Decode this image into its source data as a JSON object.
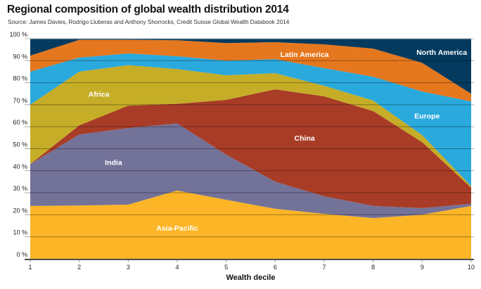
{
  "chart_data": {
    "type": "area",
    "stacked": true,
    "normalized": true,
    "title": "Regional composition of global wealth distribution 2014",
    "subtitle": "Source: James Davies, Rodrigo Lluberas and Anthony Shorrocks, Credit Suisse Global Wealth Databook 2014",
    "xlabel": "Wealth decile",
    "ylabel": "",
    "x": [
      1,
      2,
      3,
      4,
      5,
      6,
      7,
      8,
      9,
      10
    ],
    "x_tick_labels": [
      "1",
      "2",
      "3",
      "4",
      "5",
      "6",
      "7",
      "8",
      "9",
      "10"
    ],
    "y_tick_labels": [
      "0 %",
      "10 %",
      "20 %",
      "30 %",
      "40 %",
      "50 %",
      "60 %",
      "70 %",
      "80 %",
      "90 %",
      "100 %"
    ],
    "ylim": [
      0,
      100
    ],
    "grid": true,
    "legend": "inline labels",
    "series": [
      {
        "name": "Asia-Pacific",
        "color": "#fbb526",
        "values": [
          24,
          24.2,
          24.6,
          31,
          26.8,
          22.7,
          20.4,
          18.5,
          20,
          24
        ]
      },
      {
        "name": "India",
        "color": "#737299",
        "values": [
          19,
          32.3,
          34.8,
          30.5,
          20.5,
          12.3,
          8,
          5.5,
          3,
          1
        ]
      },
      {
        "name": "China",
        "color": "#a93c26",
        "values": [
          0,
          4.1,
          10.2,
          8.9,
          24.9,
          42,
          45.4,
          43.1,
          30,
          7.3
        ]
      },
      {
        "name": "Africa",
        "color": "#c5ad27",
        "values": [
          27,
          24.4,
          18.4,
          15.8,
          11.2,
          7.3,
          4.8,
          4.8,
          3.2,
          0.7
        ]
      },
      {
        "name": "Europe",
        "color": "#2aa9dd",
        "values": [
          15,
          6.4,
          5.3,
          5.8,
          6.6,
          6.4,
          8,
          10.8,
          19.8,
          38.5
        ]
      },
      {
        "name": "Latin America",
        "color": "#e5771e",
        "values": [
          7.3,
          8.1,
          6.2,
          7.3,
          8,
          7.7,
          10.8,
          12.8,
          13,
          3.5
        ]
      },
      {
        "name": "North America",
        "color": "#033a5e",
        "values": [
          7.7,
          0.5,
          0.5,
          0.7,
          2,
          1.6,
          2.6,
          4.5,
          11,
          25
        ]
      }
    ],
    "annotations": [
      {
        "text": "Asia-Pacific",
        "x": 4,
        "y": 14
      },
      {
        "text": "India",
        "x": 2.7,
        "y": 44
      },
      {
        "text": "China",
        "x": 6.6,
        "y": 55
      },
      {
        "text": "Africa",
        "x": 2.4,
        "y": 75
      },
      {
        "text": "Europe",
        "x": 9.1,
        "y": 65
      },
      {
        "text": "Latin America",
        "x": 6.6,
        "y": 93
      },
      {
        "text": "North America",
        "x": 9.4,
        "y": 94
      }
    ]
  }
}
